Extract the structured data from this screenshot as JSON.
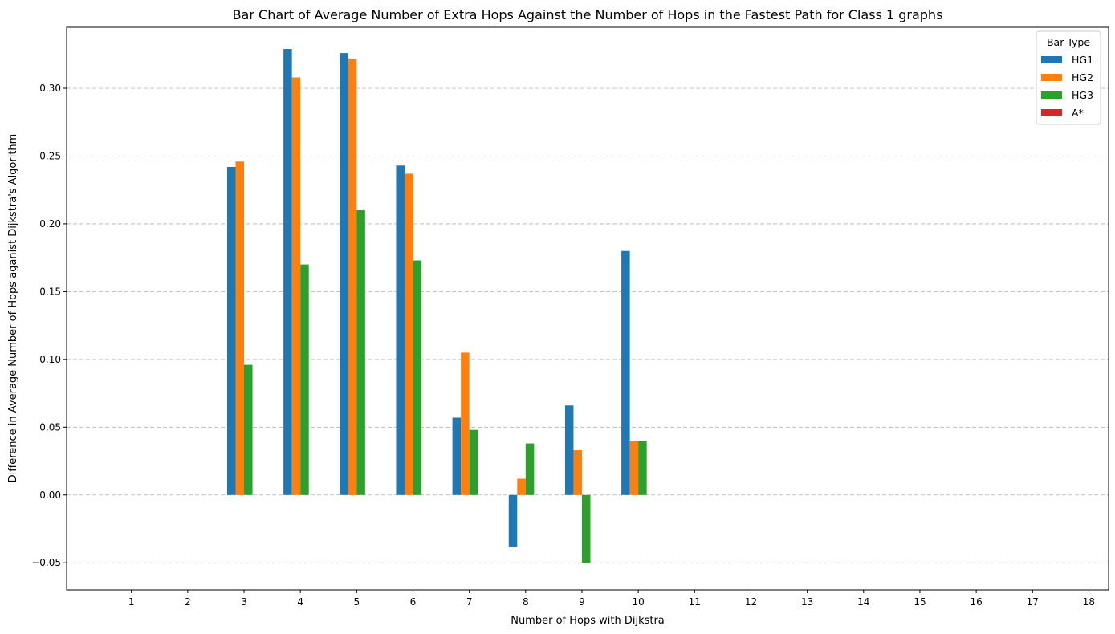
{
  "chart_data": {
    "type": "bar",
    "title": "Bar Chart of Average Number of Extra Hops Against the Number of Hops in the Fastest Path for Class 1 graphs",
    "xlabel": "Number of Hops with Dijkstra",
    "ylabel": "Difference in Average Number of Hops aganist Dijkstra's Algorithm",
    "categories": [
      "1",
      "2",
      "3",
      "4",
      "5",
      "6",
      "7",
      "8",
      "9",
      "10",
      "11",
      "12",
      "13",
      "14",
      "15",
      "16",
      "17",
      "18"
    ],
    "ylim": [
      -0.07,
      0.345
    ],
    "yticks": [
      -0.05,
      0.0,
      0.05,
      0.1,
      0.15,
      0.2,
      0.25,
      0.3
    ],
    "ytick_labels": [
      "−0.05",
      "0.00",
      "0.05",
      "0.10",
      "0.15",
      "0.20",
      "0.25",
      "0.30"
    ],
    "grid": "horizontal-dashed",
    "legend": {
      "title": "Bar Type",
      "placement": "top-right"
    },
    "series": [
      {
        "name": "HG1",
        "color": "#1f77b4",
        "values": [
          null,
          null,
          0.242,
          0.329,
          0.326,
          0.243,
          0.057,
          -0.038,
          0.066,
          0.18,
          null,
          null,
          null,
          null,
          null,
          null,
          null,
          null
        ]
      },
      {
        "name": "HG2",
        "color": "#ff7f0e",
        "values": [
          null,
          null,
          0.246,
          0.308,
          0.322,
          0.237,
          0.105,
          0.012,
          0.033,
          0.04,
          null,
          null,
          null,
          null,
          null,
          null,
          null,
          null
        ]
      },
      {
        "name": "HG3",
        "color": "#2ca02c",
        "values": [
          null,
          null,
          0.096,
          0.17,
          0.21,
          0.173,
          0.048,
          0.038,
          -0.05,
          0.04,
          null,
          null,
          null,
          null,
          null,
          null,
          null,
          null
        ]
      },
      {
        "name": "A*",
        "color": "#d62728",
        "values": [
          null,
          null,
          0,
          0,
          0,
          0,
          0,
          0,
          0,
          0,
          null,
          null,
          null,
          null,
          null,
          null,
          null,
          null
        ]
      }
    ]
  }
}
